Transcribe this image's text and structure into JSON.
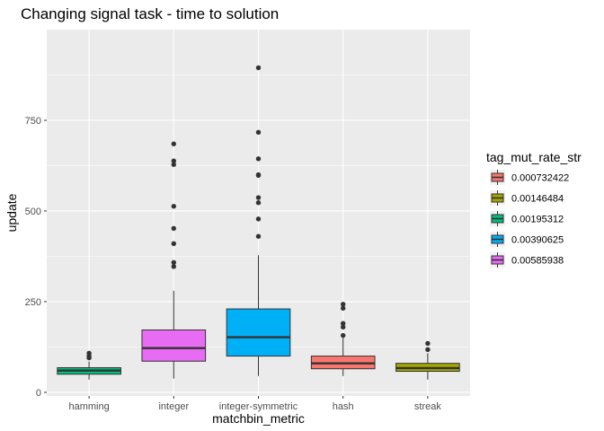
{
  "chart_data": {
    "type": "box",
    "title": "Changing signal task - time to solution",
    "xlabel": "matchbin_metric",
    "ylabel": "update",
    "ylim": [
      -10,
      1000
    ],
    "yticks": [
      0,
      250,
      500,
      750
    ],
    "grid": true,
    "legend": {
      "title": "tag_mut_rate_str",
      "placement": "right",
      "entries": [
        {
          "label": "0.000732422",
          "color": "#F8766D"
        },
        {
          "label": "0.00146484",
          "color": "#A3A500"
        },
        {
          "label": "0.00195312",
          "color": "#00BF7D"
        },
        {
          "label": "0.00390625",
          "color": "#00B0F6"
        },
        {
          "label": "0.00585938",
          "color": "#E76BF3"
        }
      ]
    },
    "categories": [
      "hamming",
      "integer",
      "integer-symmetric",
      "hash",
      "streak"
    ],
    "boxes": [
      {
        "category": "hamming",
        "group": "0.00195312",
        "color": "#00BF7D",
        "whisker_low": 35,
        "q1": 50,
        "median": 60,
        "q3": 68,
        "whisker_high": 85,
        "outliers": [
          108,
          100,
          95
        ]
      },
      {
        "category": "integer",
        "group": "0.00585938",
        "color": "#E76BF3",
        "whisker_low": 38,
        "q1": 86,
        "median": 122,
        "q3": 172,
        "whisker_high": 280,
        "outliers": [
          685,
          638,
          628,
          513,
          452,
          410,
          358,
          347
        ]
      },
      {
        "category": "integer-symmetric",
        "group": "0.00390625",
        "color": "#00B0F6",
        "whisker_low": 45,
        "q1": 100,
        "median": 152,
        "q3": 230,
        "whisker_high": 378,
        "outliers": [
          895,
          717,
          644,
          600,
          598,
          537,
          523,
          478,
          430
        ]
      },
      {
        "category": "hash",
        "group": "0.000732422",
        "color": "#F8766D",
        "whisker_low": 45,
        "q1": 65,
        "median": 80,
        "q3": 100,
        "whisker_high": 150,
        "outliers": [
          243,
          232,
          190,
          180,
          157
        ]
      },
      {
        "category": "streak",
        "group": "0.00146484",
        "color": "#A3A500",
        "whisker_low": 35,
        "q1": 58,
        "median": 67,
        "q3": 80,
        "whisker_high": 108,
        "outliers": [
          135,
          118
        ]
      }
    ]
  }
}
